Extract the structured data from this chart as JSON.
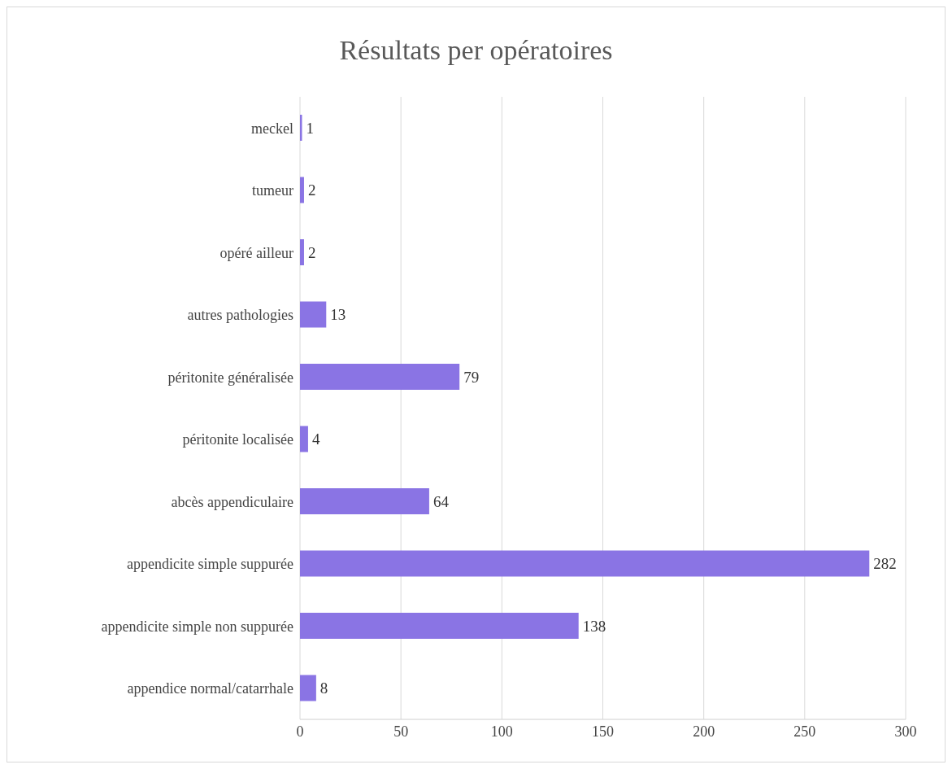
{
  "chart_data": {
    "type": "bar",
    "orientation": "horizontal",
    "title": "Résultats per opératoires",
    "categories": [
      "meckel",
      "tumeur",
      "opéré ailleur",
      "autres pathologies",
      "péritonite généralisée",
      "péritonite localisée",
      "abcès appendiculaire",
      "appendicite simple suppurée",
      "appendicite simple non suppurée",
      "appendice normal/catarrhale"
    ],
    "values": [
      1,
      2,
      2,
      13,
      79,
      4,
      64,
      282,
      138,
      8
    ],
    "color": "#8a74e4",
    "xlim": [
      0,
      300
    ],
    "xticks": [
      0,
      50,
      100,
      150,
      200,
      250,
      300
    ],
    "grid": "x",
    "data_labels": true
  }
}
